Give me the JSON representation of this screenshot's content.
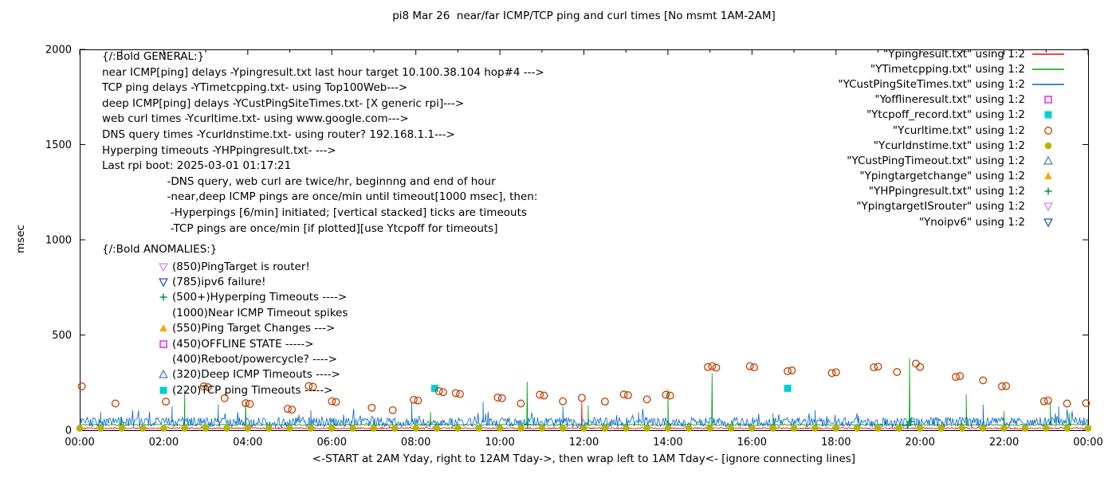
{
  "title": "pi8 Mar 26  near/far ICMP/TCP ping and curl times [No msmt 1AM-2AM]",
  "ylabel": "msec",
  "xlabel": "<-START at 2AM Yday, right to 12AM Tday->, then wrap left to 1AM Tday<- [ignore connecting lines]",
  "legend": [
    {
      "label": "\"Ypingresult.txt\" using 1:2",
      "type": "line",
      "color": "#ff0000"
    },
    {
      "label": "\"YTimetcpping.txt\" using 1:2",
      "type": "line",
      "color": "#00a000"
    },
    {
      "label": "\"YCustPingSiteTimes.txt\" using 1:2",
      "type": "line",
      "color": "#0066cc"
    },
    {
      "label": "\"Yofflineresult.txt\" using 1:2",
      "type": "marker",
      "marker": "square-open",
      "color": "#e800e8"
    },
    {
      "label": "\"Ytcpoff_record.txt\" using 1:2",
      "type": "marker",
      "marker": "square-filled",
      "color": "#00d0d0"
    },
    {
      "label": "\"Ycurltime.txt\" using 1:2",
      "type": "marker",
      "marker": "circle-open",
      "color": "#c04000"
    },
    {
      "label": "\"Ycurldnstime.txt\" using 1:2",
      "type": "marker",
      "marker": "circle-filled",
      "color": "#b8b400"
    },
    {
      "label": "\"YCustPingTimeout.txt\" using 1:2",
      "type": "marker",
      "marker": "triangle-up-open",
      "color": "#4682b4"
    },
    {
      "label": "\"Ypingtargetchange\" using 1:2",
      "type": "marker",
      "marker": "triangle-up-filled",
      "color": "#ffa500"
    },
    {
      "label": "\"YHPpingresult.txt\" using 1:2",
      "type": "marker",
      "marker": "plus",
      "color": "#009050"
    },
    {
      "label": "\"YpingtargetISrouter\" using 1:2",
      "type": "marker",
      "marker": "triangle-down-open",
      "color": "#cc88ee"
    },
    {
      "label": "\"Ynoipv6\" using 1:2",
      "type": "marker",
      "marker": "triangle-down-open",
      "color": "#2850b0"
    }
  ],
  "annotations": {
    "general_lines": [
      "{/:Bold GENERAL:}",
      "near ICMP[ping] delays -Ypingresult.txt last hour target 10.100.38.104 hop#4 --->",
      "TCP ping delays -YTimetcpping.txt- using Top100Web--->",
      "deep ICMP[ping] delays -YCustPingSiteTimes.txt- [X generic rpi]--->",
      "web curl times -Ycurltime.txt- using www.google.com--->",
      "DNS query times -Ycurldnstime.txt- using router? 192.168.1.1--->",
      "Hyperping timeouts -YHPpingresult.txt- --->",
      "Last rpi boot: 2025-03-01 01:17:21",
      "                   -DNS query, web curl are twice/hr, beginnng and end of hour",
      "                   -near,deep ICMP pings are once/min until timeout[1000 msec], then:",
      "                    -Hyperpings [6/min] initiated; [vertical stacked] ticks are timeouts",
      "                    -TCP pings are once/min [if plotted][use Ytcpoff for timeouts]"
    ],
    "anomalies_header": "{/:Bold ANOMALIES:}",
    "anomalies": [
      {
        "marker": "triangle-down-open",
        "color": "#cc88ee",
        "text": "(850)PingTarget is router!"
      },
      {
        "marker": "triangle-down-open",
        "color": "#2850b0",
        "text": "(785)ipv6 failure!"
      },
      {
        "marker": "plus",
        "color": "#009050",
        "text": "(500+)Hyperping Timeouts ---->"
      },
      {
        "marker": "none",
        "color": "",
        "text": "(1000)Near ICMP Timeout spikes"
      },
      {
        "marker": "triangle-up-filled",
        "color": "#ffa500",
        "text": "(550)Ping Target Changes --->"
      },
      {
        "marker": "square-open",
        "color": "#e800e8",
        "text": "(450)OFFLINE STATE ----->"
      },
      {
        "marker": "none",
        "color": "",
        "text": "(400)Reboot/powercycle? ---->"
      },
      {
        "marker": "triangle-up-open",
        "color": "#4682b4",
        "text": "(320)Deep ICMP Timeouts ---->"
      },
      {
        "marker": "square-filled",
        "color": "#00d0d0",
        "text": "(220)TCP ping Timeouts ----->"
      }
    ]
  },
  "chart_data": {
    "type": "line",
    "title": "pi8 Mar 26  near/far ICMP/TCP ping and curl times [No msmt 1AM-2AM]",
    "xlabel": "<-START at 2AM Yday, right to 12AM Tday->, then wrap left to 1AM Tday<- [ignore connecting lines]",
    "ylabel": "msec",
    "xlim": [
      0,
      24
    ],
    "ylim": [
      0,
      2000
    ],
    "x_ticks": [
      "00:00",
      "02:00",
      "04:00",
      "06:00",
      "08:00",
      "10:00",
      "12:00",
      "14:00",
      "16:00",
      "18:00",
      "20:00",
      "22:00",
      "00:00"
    ],
    "y_ticks": [
      0,
      500,
      1000,
      1500,
      2000
    ],
    "grid": false,
    "legend_position": "top-right",
    "line_series": [
      {
        "name": "Ypingresult.txt",
        "color": "#ff0000",
        "baseline": 10,
        "noise": 4,
        "spikes": [
          [
            11.95,
            150
          ]
        ]
      },
      {
        "name": "YTimetcpping.txt",
        "color": "#00a000",
        "baseline": 28,
        "noise": 4,
        "spikes": [
          [
            1.0,
            70
          ],
          [
            2.5,
            210
          ],
          [
            3.95,
            155
          ],
          [
            6.05,
            65
          ],
          [
            8.35,
            95
          ],
          [
            10.65,
            255
          ],
          [
            12.1,
            130
          ],
          [
            14.0,
            215
          ],
          [
            15.05,
            300
          ],
          [
            16.5,
            90
          ],
          [
            19.75,
            380
          ],
          [
            21.1,
            190
          ],
          [
            22.0,
            100
          ],
          [
            23.1,
            150
          ],
          [
            23.55,
            90
          ]
        ]
      },
      {
        "name": "YCustPingSiteTimes.txt",
        "color": "#0066cc",
        "baseline": 42,
        "noise": 26,
        "spikes": [
          [
            0.5,
            95
          ],
          [
            2.2,
            125
          ],
          [
            3.3,
            135
          ],
          [
            5.5,
            105
          ],
          [
            7.9,
            145
          ],
          [
            9.6,
            150
          ],
          [
            11.5,
            125
          ],
          [
            13.3,
            95
          ],
          [
            17.5,
            105
          ],
          [
            21.5,
            135
          ],
          [
            23.3,
            125
          ]
        ]
      }
    ],
    "scatter_series": [
      {
        "name": "Yofflineresult.txt",
        "marker": "square-open",
        "color": "#e800e8",
        "points": []
      },
      {
        "name": "Ytcpoff_record.txt",
        "marker": "square-filled",
        "color": "#00d0d0",
        "points": [
          [
            8.45,
            220
          ],
          [
            16.85,
            220
          ]
        ]
      },
      {
        "name": "Ycurltime.txt",
        "marker": "circle-open",
        "color": "#c04000",
        "points": [
          [
            0.05,
            230
          ],
          [
            0.85,
            140
          ],
          [
            2.05,
            150
          ],
          [
            2.95,
            230
          ],
          [
            3.05,
            226
          ],
          [
            3.45,
            168
          ],
          [
            3.95,
            142
          ],
          [
            4.05,
            138
          ],
          [
            4.95,
            112
          ],
          [
            5.05,
            108
          ],
          [
            5.45,
            232
          ],
          [
            5.55,
            228
          ],
          [
            6.0,
            152
          ],
          [
            6.1,
            148
          ],
          [
            6.95,
            118
          ],
          [
            7.45,
            105
          ],
          [
            7.95,
            160
          ],
          [
            8.05,
            156
          ],
          [
            8.55,
            205
          ],
          [
            8.65,
            200
          ],
          [
            8.95,
            195
          ],
          [
            9.05,
            190
          ],
          [
            9.95,
            172
          ],
          [
            10.05,
            168
          ],
          [
            10.5,
            140
          ],
          [
            10.95,
            186
          ],
          [
            11.05,
            182
          ],
          [
            11.5,
            152
          ],
          [
            11.95,
            170
          ],
          [
            12.5,
            150
          ],
          [
            12.95,
            188
          ],
          [
            13.05,
            184
          ],
          [
            13.5,
            162
          ],
          [
            13.95,
            186
          ],
          [
            14.05,
            182
          ],
          [
            14.95,
            332
          ],
          [
            15.05,
            336
          ],
          [
            15.15,
            328
          ],
          [
            15.95,
            336
          ],
          [
            16.05,
            330
          ],
          [
            16.85,
            310
          ],
          [
            16.95,
            314
          ],
          [
            17.9,
            300
          ],
          [
            18.0,
            304
          ],
          [
            18.9,
            330
          ],
          [
            19.0,
            334
          ],
          [
            19.45,
            306
          ],
          [
            19.9,
            350
          ],
          [
            20.0,
            332
          ],
          [
            20.85,
            280
          ],
          [
            20.95,
            284
          ],
          [
            21.5,
            262
          ],
          [
            21.95,
            230
          ],
          [
            22.05,
            232
          ],
          [
            22.95,
            152
          ],
          [
            23.05,
            156
          ],
          [
            23.5,
            140
          ],
          [
            23.95,
            142
          ]
        ]
      },
      {
        "name": "Ycurldnstime.txt",
        "marker": "circle-filled",
        "color": "#b8b400",
        "points": [
          [
            0,
            10
          ],
          [
            0.5,
            10
          ],
          [
            1,
            10
          ],
          [
            1.5,
            10
          ],
          [
            2,
            10
          ],
          [
            2.5,
            10
          ],
          [
            3,
            10
          ],
          [
            3.5,
            10
          ],
          [
            4,
            10
          ],
          [
            4.5,
            10
          ],
          [
            5,
            10
          ],
          [
            5.5,
            10
          ],
          [
            6,
            10
          ],
          [
            6.5,
            10
          ],
          [
            7,
            10
          ],
          [
            7.5,
            10
          ],
          [
            8,
            10
          ],
          [
            8.5,
            10
          ],
          [
            9,
            10
          ],
          [
            9.5,
            10
          ],
          [
            10,
            10
          ],
          [
            10.5,
            10
          ],
          [
            11,
            10
          ],
          [
            11.5,
            10
          ],
          [
            12,
            10
          ],
          [
            12.5,
            10
          ],
          [
            13,
            10
          ],
          [
            13.5,
            10
          ],
          [
            14,
            10
          ],
          [
            14.5,
            10
          ],
          [
            15,
            10
          ],
          [
            15.5,
            10
          ],
          [
            16,
            10
          ],
          [
            16.5,
            10
          ],
          [
            17,
            10
          ],
          [
            17.5,
            10
          ],
          [
            18,
            10
          ],
          [
            18.5,
            10
          ],
          [
            19,
            10
          ],
          [
            19.5,
            10
          ],
          [
            20,
            10
          ],
          [
            20.5,
            10
          ],
          [
            21,
            10
          ],
          [
            21.5,
            10
          ],
          [
            22,
            10
          ],
          [
            22.5,
            10
          ],
          [
            23,
            10
          ],
          [
            23.5,
            10
          ],
          [
            24,
            10
          ]
        ]
      },
      {
        "name": "YCustPingTimeout.txt",
        "marker": "triangle-up-open",
        "color": "#4682b4",
        "points": []
      },
      {
        "name": "Ypingtargetchange",
        "marker": "triangle-up-filled",
        "color": "#ffa500",
        "points": []
      },
      {
        "name": "YHPpingresult.txt",
        "marker": "plus",
        "color": "#009050",
        "points": [
          [
            10.66,
            30
          ],
          [
            19.7,
            25
          ],
          [
            19.78,
            45
          ]
        ]
      },
      {
        "name": "YpingtargetISrouter",
        "marker": "triangle-down-open",
        "color": "#cc88ee",
        "points": []
      },
      {
        "name": "Ynoipv6",
        "marker": "triangle-down-open",
        "color": "#2850b0",
        "points": []
      }
    ]
  }
}
